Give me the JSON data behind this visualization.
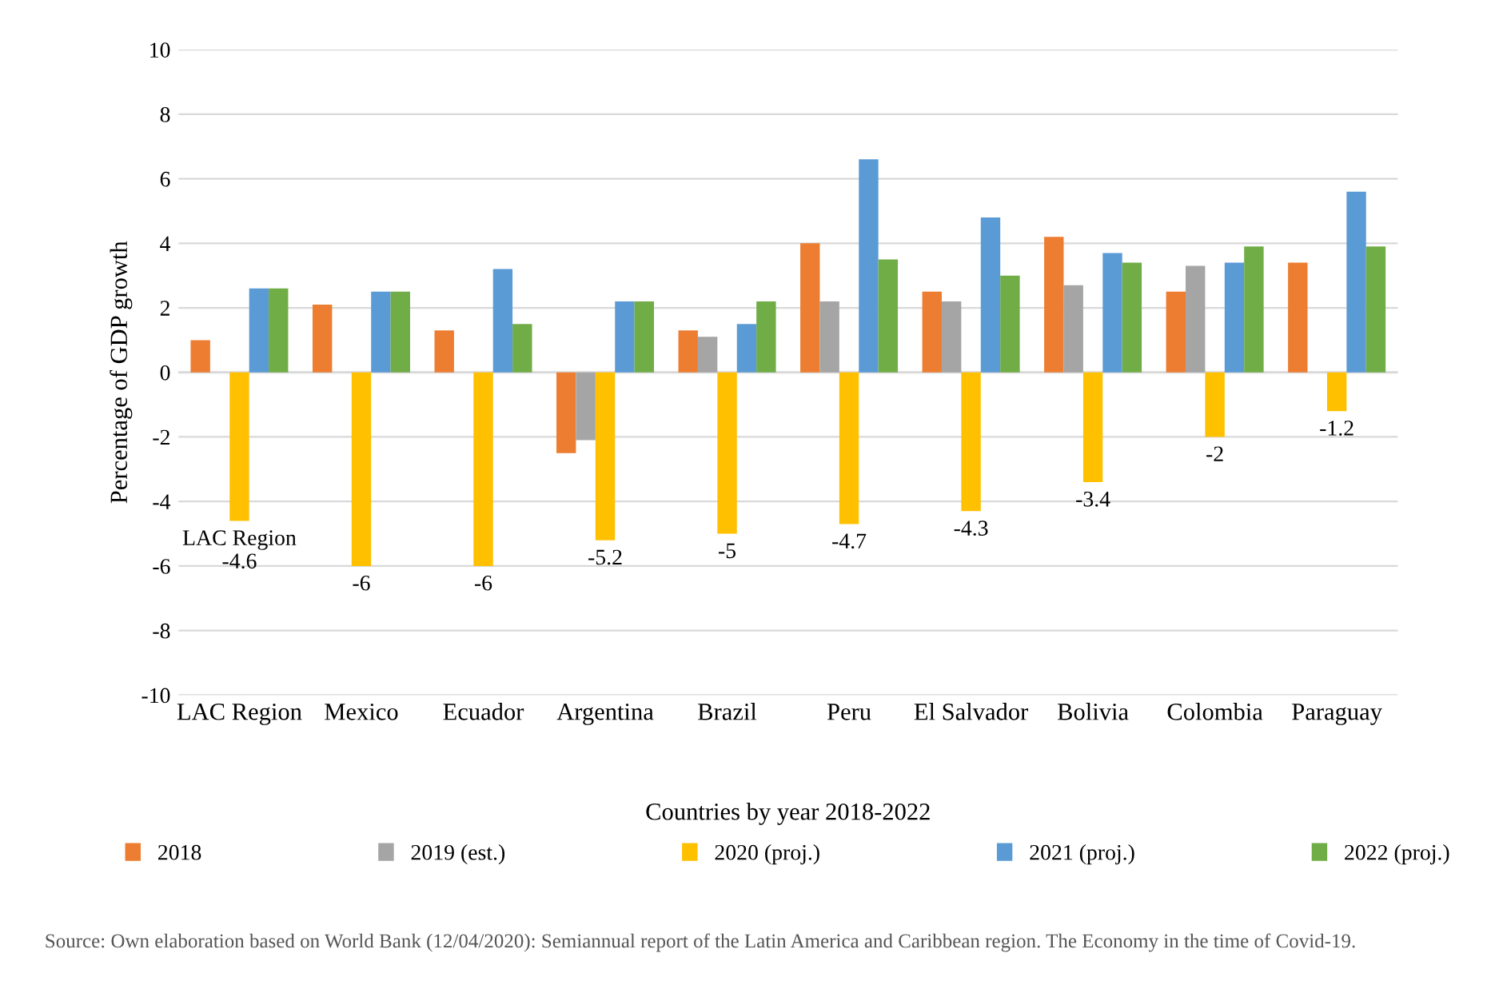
{
  "chart_data": {
    "type": "bar",
    "xlabel": "Countries by year 2018-2022",
    "ylabel": "Percentage of GDP growth",
    "categories": [
      "LAC Region",
      "Mexico",
      "Ecuador",
      "Argentina",
      "Brazil",
      "Peru",
      "El Salvador",
      "Bolivia",
      "Colombia",
      "Paraguay"
    ],
    "series": [
      {
        "name": "2018",
        "color": "#ed7d31",
        "values": [
          1.0,
          2.1,
          1.3,
          -2.5,
          1.3,
          4.0,
          2.5,
          4.2,
          2.5,
          3.4
        ]
      },
      {
        "name": "2019 (est.)",
        "color": "#a5a5a5",
        "values": [
          null,
          null,
          null,
          -2.1,
          1.1,
          2.2,
          2.2,
          2.7,
          3.3,
          null
        ]
      },
      {
        "name": "2020 (proj.)",
        "color": "#ffc000",
        "values": [
          -4.6,
          -6,
          -6,
          -5.2,
          -5,
          -4.7,
          -4.3,
          -3.4,
          -2,
          -1.2
        ],
        "value_labels": [
          "LAC Region\n-4.6",
          "-6",
          "-6",
          "-5.2",
          "-5",
          "-4.7",
          "-4.3",
          "-3.4",
          "-2",
          "-1.2"
        ]
      },
      {
        "name": "2021 (proj.)",
        "color": "#5b9bd5",
        "values": [
          2.6,
          2.5,
          3.2,
          2.2,
          1.5,
          6.6,
          4.8,
          3.7,
          3.4,
          5.6
        ]
      },
      {
        "name": "2022 (proj.)",
        "color": "#70ad47",
        "values": [
          2.6,
          2.5,
          1.5,
          2.2,
          2.2,
          3.5,
          3.0,
          3.4,
          3.9,
          3.9
        ]
      }
    ],
    "ylim": [
      -10,
      10
    ],
    "yticks": [
      -10,
      -8,
      -6,
      -4,
      -2,
      0,
      2,
      4,
      6,
      8,
      10
    ],
    "grid": "y",
    "legend": "bottom",
    "annotations": [
      "Source: Own elaboration based on World Bank (12/04/2020): Semiannual report of the Latin America and Caribbean region. The Economy in the time of Covid-19."
    ]
  }
}
